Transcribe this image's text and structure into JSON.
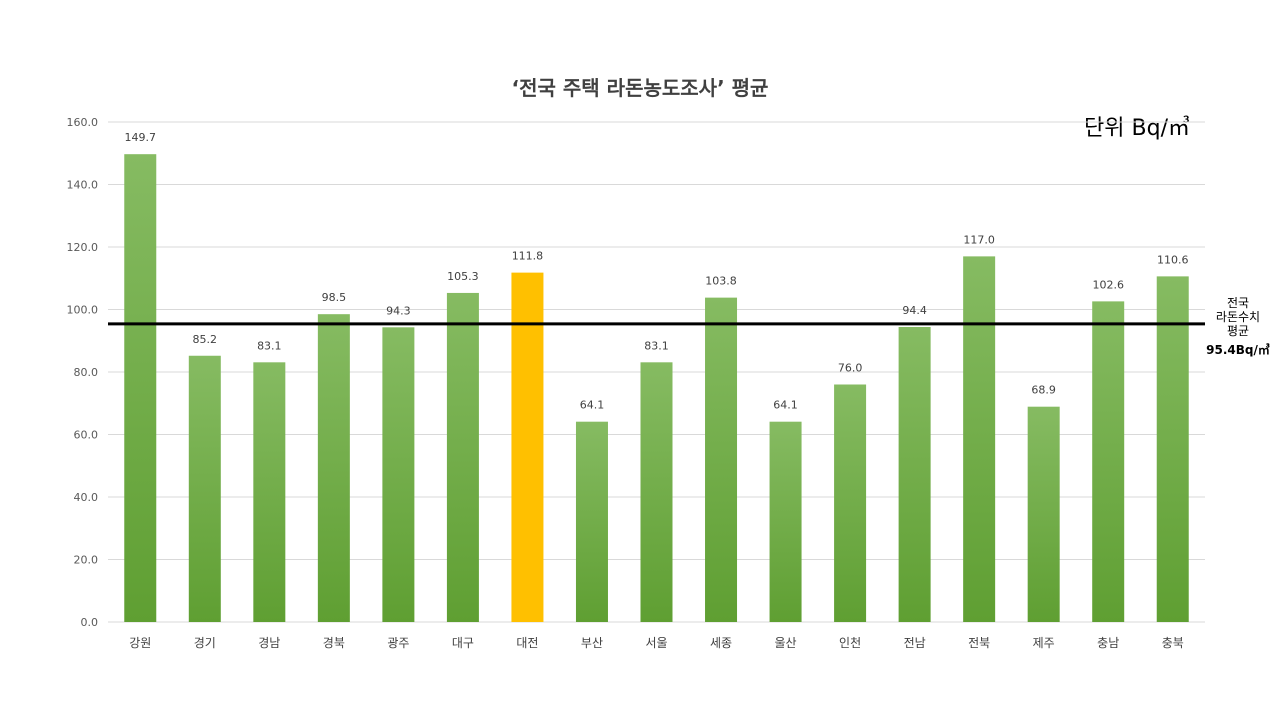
{
  "chart_data": {
    "type": "bar",
    "title": "‘전국 주택 라돈농도조사’ 평균",
    "unit_label": "단위  Bq/㎥",
    "categories": [
      "강원",
      "경기",
      "경남",
      "경북",
      "광주",
      "대구",
      "대전",
      "부산",
      "서울",
      "세종",
      "울산",
      "인천",
      "전남",
      "전북",
      "제주",
      "충남",
      "충북"
    ],
    "values": [
      149.7,
      85.2,
      83.1,
      98.5,
      94.3,
      105.3,
      111.8,
      64.1,
      83.1,
      103.8,
      64.1,
      76.0,
      94.4,
      117.0,
      68.9,
      102.6,
      110.6
    ],
    "data_labels": [
      "149.7",
      "85.2",
      "83.1",
      "98.5",
      "94.3",
      "105.3",
      "111.8",
      "64.1",
      "83.1",
      "103.8",
      "64.1",
      "76.0",
      "94.4",
      "117.0",
      "68.9",
      "102.6",
      "110.6"
    ],
    "ylim": [
      0,
      160
    ],
    "yticks": [
      0,
      20,
      40,
      60,
      80,
      100,
      120,
      140,
      160
    ],
    "ytick_labels": [
      "0.0",
      "20.0",
      "40.0",
      "60.0",
      "80.0",
      "100.0",
      "120.0",
      "140.0",
      "160.0"
    ],
    "highlight_category": "대전",
    "reference_line": {
      "value": 95.4,
      "label_lines": [
        "전국",
        "라돈수치",
        "평균"
      ],
      "value_label": "95.4Bq/㎥"
    },
    "colors": {
      "bar_top": "#86bb62",
      "bar_bottom": "#5f9f32",
      "highlight": "#ffc000",
      "reference_line": "#000000",
      "grid": "#d9d9d9"
    },
    "grid": true,
    "legend": "none"
  }
}
